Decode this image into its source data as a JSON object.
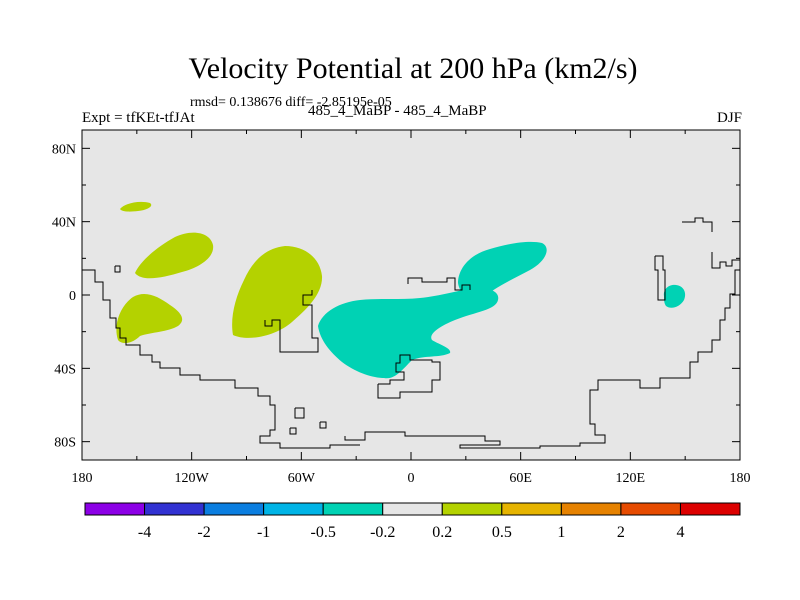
{
  "title": "Velocity Potential at 200 hPa (km2/s)",
  "stats_text": "rmsd= 0.138676 diff= -2.85195e-05",
  "experiment_label": "Expt = tfKEt-tfJAt",
  "cases_label": "485_4_MaBP - 485_4_MaBP",
  "season": "DJF",
  "chart_data": {
    "type": "heatmap",
    "variable": "Velocity Potential at 200 hPa",
    "units": "km2/s",
    "projection": "cylindrical equidistant (lon/lat)",
    "xlim": [
      -180,
      180
    ],
    "ylim": [
      -90,
      90
    ],
    "x_ticks": [
      {
        "value": -180,
        "label": "180"
      },
      {
        "value": -120,
        "label": "120W"
      },
      {
        "value": -60,
        "label": "60W"
      },
      {
        "value": 0,
        "label": "0"
      },
      {
        "value": 60,
        "label": "60E"
      },
      {
        "value": 120,
        "label": "120E"
      },
      {
        "value": 180,
        "label": "180"
      }
    ],
    "y_ticks": [
      {
        "value": 80,
        "label": "80N"
      },
      {
        "value": 40,
        "label": "40N"
      },
      {
        "value": 0,
        "label": "0"
      },
      {
        "value": -40,
        "label": "40S"
      },
      {
        "value": -80,
        "label": "80S"
      }
    ],
    "background_color": "#e6e6e6",
    "colorbar": {
      "colors": [
        "#8c00e6",
        "#3232d2",
        "#0b7ee0",
        "#00b4e6",
        "#00d2b4",
        "#e6e6e6",
        "#b4d200",
        "#e6b400",
        "#e68200",
        "#e64b00",
        "#dc0000"
      ],
      "labels": [
        "-4",
        "-2",
        "-1",
        "-0.5",
        "-0.2",
        "0.2",
        "0.5",
        "1",
        "2",
        "4"
      ]
    },
    "regions": [
      {
        "sign": "positive",
        "color": "#b4d200",
        "lon_center": -155,
        "lat_center": 49,
        "lon_extent": [
          -163,
          -148
        ],
        "lat_extent": [
          46,
          51
        ]
      },
      {
        "sign": "positive",
        "color": "#b4d200",
        "lon_center": -133,
        "lat_center": 21,
        "lon_extent": [
          -150,
          -112
        ],
        "lat_extent": [
          9,
          34
        ]
      },
      {
        "sign": "positive",
        "color": "#b4d200",
        "lon_center": -158,
        "lat_center": -12,
        "lon_extent": [
          -170,
          -140
        ],
        "lat_extent": [
          -27,
          2
        ]
      },
      {
        "sign": "positive",
        "color": "#b4d200",
        "lon_center": -72,
        "lat_center": 3,
        "lon_extent": [
          -97,
          -48
        ],
        "lat_extent": [
          -24,
          26
        ]
      },
      {
        "sign": "negative",
        "color": "#00d2b4",
        "lon_center": 65,
        "lat_center": 20,
        "lon_extent": [
          26,
          82
        ],
        "lat_extent": [
          0,
          28
        ]
      },
      {
        "sign": "negative",
        "color": "#00d2b4",
        "lon_center": -8,
        "lat_center": -22,
        "lon_extent": [
          -50,
          42
        ],
        "lat_extent": [
          -47,
          0
        ]
      },
      {
        "sign": "negative",
        "color": "#00d2b4",
        "lon_center": 146,
        "lat_center": -1,
        "lon_extent": [
          141,
          151
        ],
        "lat_extent": [
          -7,
          5
        ]
      }
    ]
  }
}
